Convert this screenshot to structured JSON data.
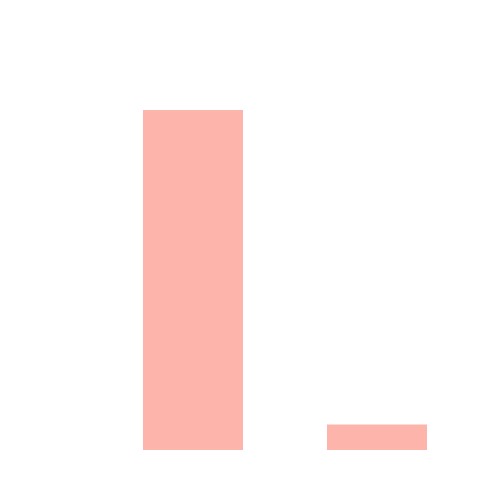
{
  "chart_data": {
    "type": "bar",
    "categories": [
      "",
      ""
    ],
    "values": [
      100,
      7.5
    ],
    "title": "",
    "xlabel": "",
    "ylabel": "",
    "ylim": [
      0,
      100
    ],
    "grid": false,
    "legend": "none",
    "bar_color": "#fdb4aa"
  }
}
